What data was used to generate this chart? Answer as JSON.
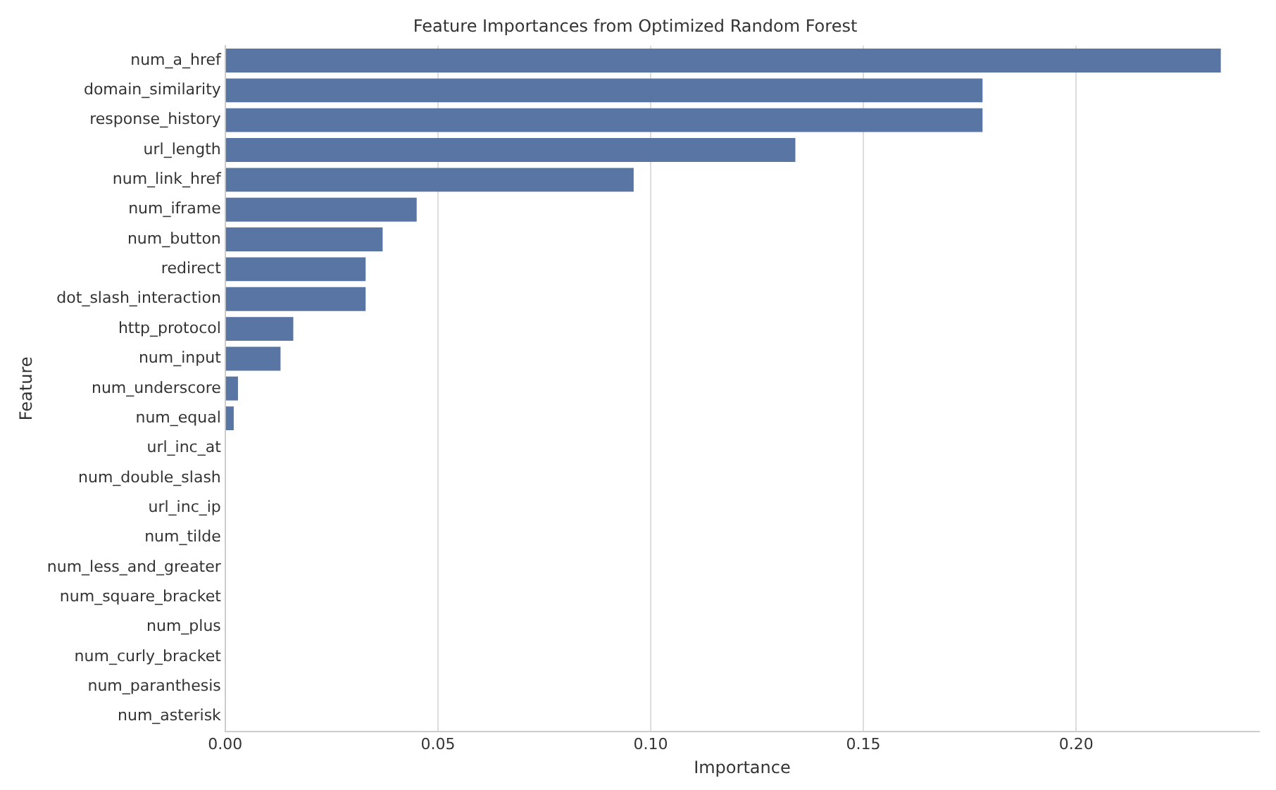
{
  "chart_data": {
    "type": "bar",
    "orientation": "horizontal",
    "title": "Feature Importances from Optimized Random Forest",
    "xlabel": "Importance",
    "ylabel": "Feature",
    "categories": [
      "num_a_href",
      "domain_similarity",
      "response_history",
      "url_length",
      "num_link_href",
      "num_iframe",
      "num_button",
      "redirect",
      "dot_slash_interaction",
      "http_protocol",
      "num_input",
      "num_underscore",
      "num_equal",
      "url_inc_at",
      "num_double_slash",
      "url_inc_ip",
      "num_tilde",
      "num_less_and_greater",
      "num_square_bracket",
      "num_plus",
      "num_curly_bracket",
      "num_paranthesis",
      "num_asterisk"
    ],
    "values": [
      0.234,
      0.178,
      0.178,
      0.134,
      0.096,
      0.045,
      0.037,
      0.033,
      0.033,
      0.016,
      0.013,
      0.003,
      0.002,
      0,
      0,
      0,
      0,
      0,
      0,
      0,
      0,
      0,
      0
    ],
    "color": "#5975a4",
    "xlim": [
      0,
      0.243
    ],
    "xticks": [
      {
        "value": 0,
        "label": "0.00"
      },
      0.05,
      {
        "value": 0.1,
        "label": "0.10"
      },
      0.15,
      {
        "value": 0.2,
        "label": "0.20"
      }
    ],
    "grid": "x"
  }
}
